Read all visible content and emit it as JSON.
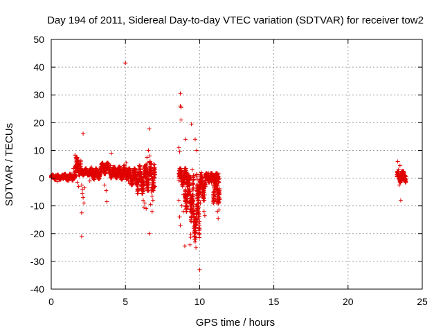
{
  "chart_data": {
    "type": "scatter",
    "title": "Day 194 of 2011, Sidereal Day-to-day VTEC variation (SDTVAR) for receiver tow2",
    "xlabel": "GPS time / hours",
    "ylabel": "SDTVAR / TECUs",
    "xlim": [
      0,
      25
    ],
    "ylim": [
      -40,
      50
    ],
    "xticks": [
      "0",
      "5",
      "10",
      "15",
      "20",
      "25"
    ],
    "yticks": [
      "50",
      "40",
      "30",
      "20",
      "10",
      "0",
      "-10",
      "-20",
      "-30",
      "-40"
    ],
    "grid": true,
    "marker": "+",
    "color": "#e00000",
    "series": [
      {
        "name": "SDTVAR",
        "points": [
          [
            0.0,
            0.2
          ],
          [
            0.1,
            0.5
          ],
          [
            0.2,
            -0.3
          ],
          [
            0.3,
            1.0
          ],
          [
            0.4,
            -1.2
          ],
          [
            0.5,
            0.4
          ],
          [
            0.6,
            -0.6
          ],
          [
            0.7,
            0.8
          ],
          [
            0.8,
            -0.2
          ],
          [
            0.9,
            1.2
          ],
          [
            1.0,
            -0.5
          ],
          [
            1.1,
            0.9
          ],
          [
            1.2,
            -0.9
          ],
          [
            1.3,
            0.3
          ],
          [
            1.4,
            1.5
          ],
          [
            1.5,
            -0.4
          ],
          [
            1.6,
            2.2
          ],
          [
            1.7,
            0.6
          ],
          [
            1.8,
            3.5
          ],
          [
            1.9,
            1.5
          ],
          [
            1.5,
            3.5
          ],
          [
            1.7,
            4.5
          ],
          [
            1.6,
            8.3
          ],
          [
            1.7,
            6.5
          ],
          [
            1.8,
            6.0
          ],
          [
            1.9,
            5.0
          ],
          [
            1.75,
            -1.5
          ],
          [
            1.85,
            -3.0
          ],
          [
            1.95,
            2.8
          ],
          [
            1.65,
            7.4
          ],
          [
            2.0,
            2.5
          ],
          [
            2.05,
            -2.5
          ],
          [
            2.1,
            -4.0
          ],
          [
            2.1,
            -5.5
          ],
          [
            2.15,
            -7.0
          ],
          [
            2.2,
            -9.0
          ],
          [
            2.05,
            -12.5
          ],
          [
            2.05,
            -21.0
          ],
          [
            2.15,
            16.0
          ],
          [
            2.25,
            -3.5
          ],
          [
            2.3,
            1.5
          ],
          [
            2.4,
            3.0
          ],
          [
            2.5,
            2.0
          ],
          [
            2.6,
            1.0
          ],
          [
            2.7,
            2.5
          ],
          [
            2.8,
            0.5
          ],
          [
            2.9,
            -0.5
          ],
          [
            2.6,
            -1.0
          ],
          [
            2.7,
            4.0
          ],
          [
            2.8,
            3.0
          ],
          [
            3.0,
            3.5
          ],
          [
            3.1,
            2.0
          ],
          [
            3.2,
            1.0
          ],
          [
            3.3,
            3.0
          ],
          [
            3.4,
            4.0
          ],
          [
            3.5,
            2.5
          ],
          [
            3.6,
            4.0
          ],
          [
            3.7,
            5.0
          ],
          [
            3.8,
            4.5
          ],
          [
            3.9,
            3.0
          ],
          [
            3.6,
            -2.5
          ],
          [
            3.7,
            -4.5
          ],
          [
            3.75,
            -8.5
          ],
          [
            4.0,
            4.5
          ],
          [
            4.05,
            9.0
          ],
          [
            4.1,
            3.0
          ],
          [
            4.2,
            2.5
          ],
          [
            4.3,
            4.0
          ],
          [
            4.4,
            1.5
          ],
          [
            4.5,
            0.5
          ],
          [
            4.6,
            2.5
          ],
          [
            4.7,
            1.0
          ],
          [
            4.8,
            2.0
          ],
          [
            4.9,
            3.0
          ],
          [
            5.0,
            3.0
          ],
          [
            5.0,
            41.5
          ],
          [
            5.05,
            5.5
          ],
          [
            5.1,
            0.5
          ],
          [
            5.2,
            -1.0
          ],
          [
            5.3,
            -2.0
          ],
          [
            5.4,
            0.0
          ],
          [
            5.5,
            2.0
          ],
          [
            5.6,
            -0.5
          ],
          [
            5.7,
            0.5
          ],
          [
            5.8,
            2.0
          ],
          [
            5.9,
            -1.0
          ],
          [
            6.0,
            2.5
          ],
          [
            6.1,
            -3.0
          ],
          [
            6.2,
            -8.0
          ],
          [
            6.25,
            -10.5
          ],
          [
            6.3,
            -9.0
          ],
          [
            6.4,
            -11.0
          ],
          [
            6.5,
            3.0
          ],
          [
            6.55,
            10.0
          ],
          [
            6.6,
            17.8
          ],
          [
            6.6,
            -20.0
          ],
          [
            6.65,
            8.0
          ],
          [
            6.7,
            5.0
          ],
          [
            6.75,
            -5.0
          ],
          [
            6.8,
            -6.5
          ],
          [
            6.85,
            -8.0
          ],
          [
            6.9,
            5.0
          ],
          [
            6.95,
            2.0
          ],
          [
            7.0,
            3.0
          ],
          [
            7.0,
            -3.0
          ],
          [
            6.9,
            -3.5
          ],
          [
            6.5,
            5.5
          ],
          [
            6.45,
            7.5
          ],
          [
            6.7,
            -9.5
          ],
          [
            6.8,
            -12.0
          ],
          [
            8.6,
            1.5
          ],
          [
            8.6,
            11.0
          ],
          [
            8.65,
            9.5
          ],
          [
            8.7,
            30.5
          ],
          [
            8.7,
            26.0
          ],
          [
            8.75,
            25.5
          ],
          [
            8.75,
            21.0
          ],
          [
            8.8,
            0.5
          ],
          [
            8.85,
            -3.0
          ],
          [
            8.9,
            -6.0
          ],
          [
            8.6,
            -8.0
          ],
          [
            8.65,
            -14.0
          ],
          [
            8.7,
            -17.0
          ],
          [
            8.8,
            -10.0
          ],
          [
            8.9,
            -12.0
          ],
          [
            9.0,
            -7.5
          ],
          [
            9.0,
            -24.5
          ],
          [
            9.05,
            14.0
          ],
          [
            9.1,
            1.0
          ],
          [
            9.2,
            -3.0
          ],
          [
            9.3,
            -5.0
          ],
          [
            9.35,
            -24.0
          ],
          [
            9.45,
            19.5
          ],
          [
            9.5,
            3.0
          ],
          [
            9.55,
            -2.0
          ],
          [
            9.6,
            -18.0
          ],
          [
            9.65,
            -21.0
          ],
          [
            9.7,
            -23.0
          ],
          [
            9.7,
            14.0
          ],
          [
            9.75,
            -25.0
          ],
          [
            9.8,
            -19.5
          ],
          [
            9.8,
            10.0
          ],
          [
            9.85,
            -15.0
          ],
          [
            9.9,
            -11.0
          ],
          [
            9.95,
            -16.5
          ],
          [
            10.0,
            -18.0
          ],
          [
            10.0,
            -33.0
          ],
          [
            10.05,
            -9.0
          ],
          [
            10.1,
            -6.0
          ],
          [
            10.15,
            -3.0
          ],
          [
            10.2,
            -2.0
          ],
          [
            10.25,
            -7.5
          ],
          [
            10.3,
            -12.0
          ],
          [
            10.35,
            -13.5
          ],
          [
            10.4,
            -1.0
          ],
          [
            10.5,
            0.5
          ],
          [
            10.6,
            -0.5
          ],
          [
            10.7,
            1.0
          ],
          [
            10.8,
            -1.5
          ],
          [
            10.9,
            -2.5
          ],
          [
            11.0,
            -3.5
          ],
          [
            11.05,
            -6.0
          ],
          [
            11.1,
            -7.5
          ],
          [
            11.15,
            -9.0
          ],
          [
            11.2,
            -12.0
          ],
          [
            11.25,
            -14.5
          ],
          [
            11.3,
            -11.5
          ],
          [
            11.35,
            0.0
          ],
          [
            11.3,
            1.5
          ],
          [
            11.2,
            0.5
          ],
          [
            9.2,
            1.5
          ],
          [
            9.4,
            0.5
          ],
          [
            9.6,
            -0.5
          ],
          [
            9.8,
            0.8
          ],
          [
            10.0,
            -1.0
          ],
          [
            10.2,
            0.2
          ],
          [
            10.4,
            1.2
          ],
          [
            10.6,
            1.8
          ],
          [
            10.8,
            0.5
          ],
          [
            11.0,
            0.2
          ],
          [
            23.3,
            0.5
          ],
          [
            23.35,
            6.0
          ],
          [
            23.4,
            3.0
          ],
          [
            23.45,
            1.5
          ],
          [
            23.5,
            -1.5
          ],
          [
            23.55,
            -8.0
          ],
          [
            23.6,
            2.5
          ],
          [
            23.65,
            -0.5
          ],
          [
            23.7,
            1.5
          ],
          [
            23.75,
            0.5
          ],
          [
            23.8,
            0.0
          ],
          [
            23.85,
            1.0
          ],
          [
            23.9,
            0.5
          ],
          [
            23.5,
            4.5
          ],
          [
            23.45,
            -2.5
          ]
        ],
        "segments": [
          [
            0.0,
            0.8,
            -0.5,
            1.2
          ],
          [
            0.8,
            1.6,
            -0.8,
            1.5
          ],
          [
            1.6,
            2.0,
            1.0,
            7.5
          ],
          [
            2.0,
            2.6,
            1.0,
            3.5
          ],
          [
            2.6,
            3.3,
            -0.3,
            3.5
          ],
          [
            3.3,
            4.0,
            1.5,
            5.5
          ],
          [
            4.0,
            4.6,
            0.0,
            4.0
          ],
          [
            4.6,
            5.2,
            -0.5,
            4.5
          ],
          [
            5.2,
            5.8,
            -2.5,
            3.5
          ],
          [
            5.8,
            6.4,
            -5.5,
            4.5
          ],
          [
            6.4,
            7.0,
            -4.5,
            6.0
          ],
          [
            8.6,
            9.2,
            -2.5,
            3.5
          ],
          [
            9.0,
            9.6,
            -12.0,
            1.0
          ],
          [
            9.4,
            10.0,
            -22.0,
            -6.0
          ],
          [
            9.8,
            10.4,
            -8.0,
            2.0
          ],
          [
            10.4,
            11.3,
            -1.5,
            1.8
          ],
          [
            10.9,
            11.35,
            -9.0,
            0.0
          ],
          [
            23.3,
            23.9,
            -1.5,
            2.5
          ]
        ]
      }
    ]
  }
}
